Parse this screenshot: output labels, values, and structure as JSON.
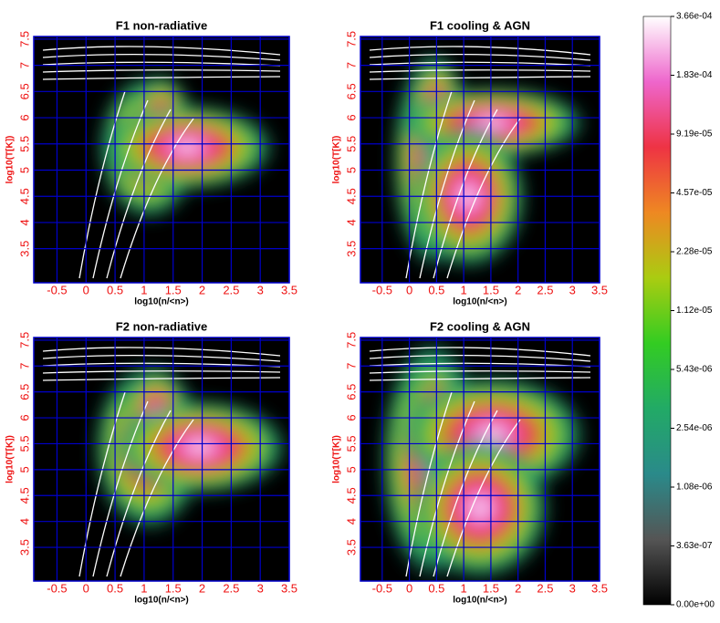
{
  "chart_data": [
    {
      "type": "heatmap",
      "title": "F1  non-radiative",
      "xlabel": "log10(n/<n>)",
      "ylabel": "log10(T[K])",
      "xlim": [
        -0.9,
        3.5
      ],
      "ylim": [
        2.85,
        7.55
      ],
      "xticks": [
        -0.5,
        0,
        0.5,
        1,
        1.5,
        2,
        2.5,
        3,
        3.5
      ],
      "yticks": [
        3.5,
        4,
        4.5,
        5,
        5.5,
        6,
        6.5,
        7,
        7.5
      ],
      "grid": true,
      "grid_color": "#0000cc"
    },
    {
      "type": "heatmap",
      "title": "F1  cooling & AGN",
      "xlabel": "log10(n/<n>)",
      "ylabel": "log10(T[K])",
      "xlim": [
        -0.9,
        3.5
      ],
      "ylim": [
        2.85,
        7.55
      ],
      "xticks": [
        -0.5,
        0,
        0.5,
        1,
        1.5,
        2,
        2.5,
        3,
        3.5
      ],
      "yticks": [
        3.5,
        4,
        4.5,
        5,
        5.5,
        6,
        6.5,
        7,
        7.5
      ],
      "grid": true,
      "grid_color": "#0000cc"
    },
    {
      "type": "heatmap",
      "title": "F2 non-radiative",
      "xlabel": "log10(n/<n>)",
      "ylabel": "log10(T[K])",
      "xlim": [
        -0.9,
        3.5
      ],
      "ylim": [
        2.85,
        7.55
      ],
      "xticks": [
        -0.5,
        0,
        0.5,
        1,
        1.5,
        2,
        2.5,
        3,
        3.5
      ],
      "yticks": [
        3.5,
        4,
        4.5,
        5,
        5.5,
        6,
        6.5,
        7,
        7.5
      ],
      "grid": true,
      "grid_color": "#0000cc"
    },
    {
      "type": "heatmap",
      "title": "F2 cooling & AGN",
      "xlabel": "log10(n/<n>)",
      "ylabel": "log10(T[K])",
      "xlim": [
        -0.9,
        3.5
      ],
      "ylim": [
        2.85,
        7.55
      ],
      "xticks": [
        -0.5,
        0,
        0.5,
        1,
        1.5,
        2,
        2.5,
        3,
        3.5
      ],
      "yticks": [
        3.5,
        4,
        4.5,
        5,
        5.5,
        6,
        6.5,
        7,
        7.5
      ],
      "grid": true,
      "grid_color": "#0000cc"
    },
    {
      "type": "colorbar",
      "ticks": [
        {
          "value": 0,
          "label": "0.00e+00"
        },
        {
          "value": 3.63e-07,
          "label": "3.63e-07"
        },
        {
          "value": 1.08e-06,
          "label": "1.08e-06"
        },
        {
          "value": 2.54e-06,
          "label": "2.54e-06"
        },
        {
          "value": 5.43e-06,
          "label": "5.43e-06"
        },
        {
          "value": 1.12e-05,
          "label": "1.12e-05"
        },
        {
          "value": 2.28e-05,
          "label": "2.28e-05"
        },
        {
          "value": 4.57e-05,
          "label": "4.57e-05"
        },
        {
          "value": 9.19e-05,
          "label": "9.19e-05"
        },
        {
          "value": 0.000183,
          "label": "1.83e-04"
        },
        {
          "value": 0.000366,
          "label": "3.66e-04"
        }
      ],
      "colors": [
        "#000000",
        "#555555",
        "#2a8a8a",
        "#22aa66",
        "#33cc22",
        "#aacc11",
        "#ee8822",
        "#ee3344",
        "#ee66cc",
        "#ffffff"
      ]
    }
  ]
}
